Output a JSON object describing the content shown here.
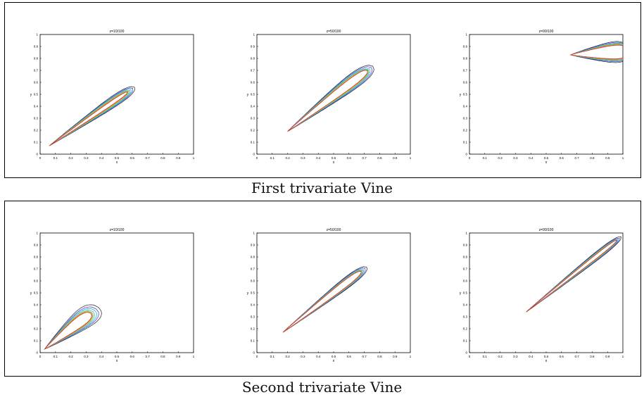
{
  "figure": {
    "captions": [
      "First trivariate Vine",
      "Second trivariate Vine"
    ]
  },
  "colors": {
    "levels": [
      "#222222",
      "#3a3ad0",
      "#2aa0e0",
      "#40c0b0",
      "#60c060",
      "#e0b020",
      "#e06020",
      "#d03030"
    ]
  },
  "chart_data": [
    {
      "type": "contour",
      "panel": "First trivariate Vine",
      "title": "z=10/100",
      "xlabel": "x",
      "ylabel": "y",
      "xlim": [
        0,
        1
      ],
      "ylim": [
        0,
        1
      ],
      "xticks": [
        "0",
        "0.1",
        "0.2",
        "0.3",
        "0.4",
        "0.5",
        "0.6",
        "0.7",
        "0.8",
        "0.9",
        "1"
      ],
      "yticks": [
        "0",
        "0.1",
        "0.2",
        "0.3",
        "0.4",
        "0.5",
        "0.6",
        "0.7",
        "0.8",
        "0.9",
        "1"
      ],
      "contour": {
        "start": [
          0.06,
          0.07
        ],
        "end": [
          0.57,
          0.52
        ],
        "widths": [
          0.115,
          0.1,
          0.09,
          0.08,
          0.07,
          0.06,
          0.05,
          0.04
        ],
        "end_extensions": [
          0.06,
          0.045,
          0.03,
          0.02,
          0.012,
          0.005,
          0.0,
          0.0
        ]
      }
    },
    {
      "type": "contour",
      "panel": "First trivariate Vine",
      "title": "z=50/100",
      "xlabel": "x",
      "ylabel": "y",
      "xlim": [
        0,
        1
      ],
      "ylim": [
        0,
        1
      ],
      "xticks": [
        "0",
        "0.1",
        "0.2",
        "0.3",
        "0.4",
        "0.5",
        "0.6",
        "0.7",
        "0.8",
        "0.9",
        "1"
      ],
      "yticks": [
        "0",
        "0.1",
        "0.2",
        "0.3",
        "0.4",
        "0.5",
        "0.6",
        "0.7",
        "0.8",
        "0.9",
        "1"
      ],
      "contour": {
        "start": [
          0.2,
          0.19
        ],
        "end": [
          0.72,
          0.7
        ],
        "widths": [
          0.16,
          0.145,
          0.13,
          0.12,
          0.11,
          0.1,
          0.09,
          0.085
        ],
        "end_extensions": [
          0.05,
          0.035,
          0.02,
          0.01,
          0.005,
          0.0,
          0.0,
          0.0
        ]
      }
    },
    {
      "type": "contour",
      "panel": "First trivariate Vine",
      "title": "z=90/100",
      "xlabel": "x",
      "ylabel": "y",
      "xlim": [
        0,
        1
      ],
      "ylim": [
        0,
        1
      ],
      "xticks": [
        "0",
        "0.1",
        "0.2",
        "0.3",
        "0.4",
        "0.5",
        "0.6",
        "0.7",
        "0.8",
        "0.9",
        "1"
      ],
      "yticks": [
        "0",
        "0.1",
        "0.2",
        "0.3",
        "0.4",
        "0.5",
        "0.6",
        "0.7",
        "0.8",
        "0.9",
        "1"
      ],
      "contour": {
        "start": [
          0.66,
          0.83
        ],
        "end": [
          1.04,
          0.86
        ],
        "widths": [
          0.25,
          0.23,
          0.21,
          0.2,
          0.19,
          0.18,
          0.17,
          0.16
        ],
        "end_extensions": [
          0.0,
          0.0,
          0.0,
          0.0,
          0.0,
          0.0,
          0.0,
          0.0
        ]
      }
    },
    {
      "type": "contour",
      "panel": "Second trivariate Vine",
      "title": "z=10/100",
      "xlabel": "x",
      "ylabel": "y",
      "xlim": [
        0,
        1
      ],
      "ylim": [
        0,
        1
      ],
      "xticks": [
        "0",
        "0.1",
        "0.2",
        "0.3",
        "0.4",
        "0.5",
        "0.6",
        "0.7",
        "0.8",
        "0.9",
        "1"
      ],
      "yticks": [
        "0",
        "0.1",
        "0.2",
        "0.3",
        "0.4",
        "0.5",
        "0.6",
        "0.7",
        "0.8",
        "0.9",
        "1"
      ],
      "contour": {
        "start": [
          0.03,
          0.03
        ],
        "end": [
          0.33,
          0.33
        ],
        "widths": [
          0.22,
          0.19,
          0.17,
          0.155,
          0.14,
          0.13,
          0.12,
          0.11
        ],
        "end_extensions": [
          0.07,
          0.05,
          0.035,
          0.02,
          0.01,
          0.005,
          0.0,
          0.0
        ]
      }
    },
    {
      "type": "contour",
      "panel": "Second trivariate Vine",
      "title": "z=50/100",
      "xlabel": "x",
      "ylabel": "y",
      "xlim": [
        0,
        1
      ],
      "ylim": [
        0,
        1
      ],
      "xticks": [
        "0",
        "0.1",
        "0.2",
        "0.3",
        "0.4",
        "0.5",
        "0.6",
        "0.7",
        "0.8",
        "0.9",
        "1"
      ],
      "yticks": [
        "0",
        "0.1",
        "0.2",
        "0.3",
        "0.4",
        "0.5",
        "0.6",
        "0.7",
        "0.8",
        "0.9",
        "1"
      ],
      "contour": {
        "start": [
          0.17,
          0.17
        ],
        "end": [
          0.68,
          0.68
        ],
        "widths": [
          0.11,
          0.1,
          0.09,
          0.085,
          0.08,
          0.075,
          0.07,
          0.065
        ],
        "end_extensions": [
          0.05,
          0.035,
          0.02,
          0.012,
          0.006,
          0.0,
          0.0,
          0.0
        ]
      }
    },
    {
      "type": "contour",
      "panel": "Second trivariate Vine",
      "title": "z=90/100",
      "xlabel": "x",
      "ylabel": "y",
      "xlim": [
        0,
        1
      ],
      "ylim": [
        0,
        1
      ],
      "xticks": [
        "0",
        "0.1",
        "0.2",
        "0.3",
        "0.4",
        "0.5",
        "0.6",
        "0.7",
        "0.8",
        "0.9",
        "1"
      ],
      "yticks": [
        "0",
        "0.1",
        "0.2",
        "0.3",
        "0.4",
        "0.5",
        "0.6",
        "0.7",
        "0.8",
        "0.9",
        "1"
      ],
      "contour": {
        "start": [
          0.37,
          0.34
        ],
        "end": [
          0.96,
          0.94
        ],
        "widths": [
          0.08,
          0.07,
          0.062,
          0.056,
          0.05,
          0.045,
          0.04,
          0.036
        ],
        "end_extensions": [
          0.04,
          0.025,
          0.012,
          0.005,
          0.0,
          0.0,
          0.0,
          0.0
        ]
      }
    }
  ]
}
